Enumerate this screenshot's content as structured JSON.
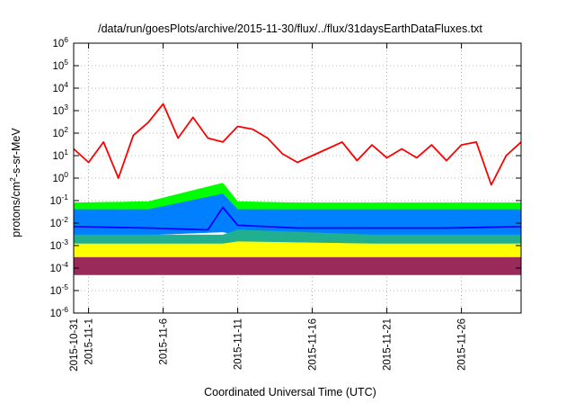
{
  "chart_data": {
    "type": "line",
    "title": "/data/run/goesPlots/archive/2015-11-30/flux/../flux/31daysEarthDataFluxes.txt",
    "xlabel": "Coordinated Universal Time (UTC)",
    "ylabel": {
      "prefix": "protons/cm",
      "exponent": "2",
      "suffix": "-s-sr-MeV"
    },
    "yscale": "log",
    "ylim": [
      1e-06,
      1000000.0
    ],
    "xlim": [
      "2015-10-31",
      "2015-11-30"
    ],
    "grid": true,
    "legend": "none",
    "y_ticks": [
      {
        "base": "10",
        "exp": "6"
      },
      {
        "base": "10",
        "exp": "5"
      },
      {
        "base": "10",
        "exp": "4"
      },
      {
        "base": "10",
        "exp": "3"
      },
      {
        "base": "10",
        "exp": "2"
      },
      {
        "base": "10",
        "exp": "1"
      },
      {
        "base": "10",
        "exp": "0"
      },
      {
        "base": "10",
        "exp": "-1"
      },
      {
        "base": "10",
        "exp": "-2"
      },
      {
        "base": "10",
        "exp": "-3"
      },
      {
        "base": "10",
        "exp": "-4"
      },
      {
        "base": "10",
        "exp": "-5"
      },
      {
        "base": "10",
        "exp": "-6"
      }
    ],
    "x_ticks": [
      "2015-10-31",
      "2015-11-1",
      "2015-11-6",
      "2015-11-11",
      "2015-11-16",
      "2015-11-21",
      "2015-11-26"
    ],
    "series": [
      {
        "color": "#ff0000",
        "style": "line",
        "x": [
          "2015-10-31",
          "2015-11-1",
          "2015-11-2",
          "2015-11-3",
          "2015-11-4",
          "2015-11-5",
          "2015-11-6",
          "2015-11-7",
          "2015-11-8",
          "2015-11-9",
          "2015-11-10",
          "2015-11-11",
          "2015-11-12",
          "2015-11-13",
          "2015-11-14",
          "2015-11-15",
          "2015-11-16",
          "2015-11-17",
          "2015-11-18",
          "2015-11-19",
          "2015-11-20",
          "2015-11-21",
          "2015-11-22",
          "2015-11-23",
          "2015-11-24",
          "2015-11-25",
          "2015-11-26",
          "2015-11-27",
          "2015-11-28",
          "2015-11-29",
          "2015-11-30"
        ],
        "values": [
          20,
          5,
          40,
          1,
          80,
          300,
          2000,
          60,
          500,
          60,
          40,
          200,
          150,
          60,
          12,
          5,
          10,
          20,
          40,
          6,
          30,
          8,
          20,
          8,
          30,
          6,
          30,
          40,
          0.5,
          10,
          40
        ]
      },
      {
        "color": "#00ff00",
        "style": "band",
        "x": [
          "2015-10-31",
          "2015-11-5",
          "2015-11-10",
          "2015-11-11",
          "2015-11-15",
          "2015-11-20",
          "2015-11-25",
          "2015-11-30"
        ],
        "low": [
          0.01,
          0.01,
          0.012,
          0.01,
          0.01,
          0.01,
          0.01,
          0.01
        ],
        "high": [
          0.08,
          0.09,
          0.6,
          0.09,
          0.08,
          0.08,
          0.08,
          0.08
        ]
      },
      {
        "color": "#0080ff",
        "style": "band",
        "x": [
          "2015-10-31",
          "2015-11-5",
          "2015-11-10",
          "2015-11-11",
          "2015-11-15",
          "2015-11-20",
          "2015-11-25",
          "2015-11-30"
        ],
        "low": [
          0.003,
          0.003,
          0.004,
          0.003,
          0.003,
          0.003,
          0.003,
          0.003
        ],
        "high": [
          0.04,
          0.04,
          0.2,
          0.04,
          0.04,
          0.04,
          0.04,
          0.04
        ]
      },
      {
        "color": "#0000ff",
        "style": "line",
        "x": [
          "2015-10-31",
          "2015-11-5",
          "2015-11-9",
          "2015-11-10",
          "2015-11-11",
          "2015-11-15",
          "2015-11-20",
          "2015-11-25",
          "2015-11-30"
        ],
        "values": [
          0.007,
          0.006,
          0.005,
          0.05,
          0.008,
          0.006,
          0.006,
          0.006,
          0.007
        ]
      },
      {
        "color": "#20b090",
        "style": "band",
        "x": [
          "2015-10-31",
          "2015-11-10",
          "2015-11-11",
          "2015-11-20",
          "2015-11-30"
        ],
        "low": [
          0.001,
          0.001,
          0.0012,
          0.001,
          0.001
        ],
        "high": [
          0.003,
          0.003,
          0.005,
          0.003,
          0.003
        ]
      },
      {
        "color": "#ffff00",
        "style": "band",
        "x": [
          "2015-10-31",
          "2015-11-10",
          "2015-11-11",
          "2015-11-20",
          "2015-11-30"
        ],
        "low": [
          0.0003,
          0.0003,
          0.0003,
          0.0003,
          0.0003
        ],
        "high": [
          0.0012,
          0.0012,
          0.0015,
          0.0012,
          0.0012
        ]
      },
      {
        "color": "#9a2a5a",
        "style": "band",
        "x": [
          "2015-10-31",
          "2015-11-10",
          "2015-11-20",
          "2015-11-30"
        ],
        "low": [
          5e-05,
          5e-05,
          5e-05,
          5e-05
        ],
        "high": [
          0.0003,
          0.0003,
          0.0003,
          0.0003
        ]
      }
    ]
  }
}
